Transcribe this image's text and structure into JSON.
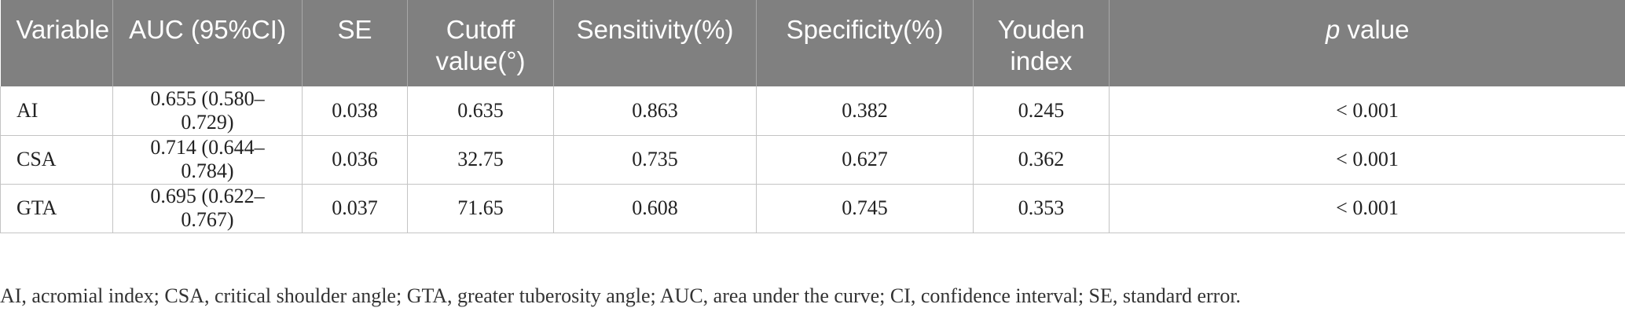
{
  "table": {
    "headers": [
      {
        "text": "Variable",
        "prefix": "",
        "suffix": ""
      },
      {
        "text": "AUC (95%CI)",
        "prefix": "",
        "suffix": ""
      },
      {
        "text": "SE",
        "prefix": "",
        "suffix": ""
      },
      {
        "line1": "Cutoff",
        "line2": "value(°)"
      },
      {
        "text": "Sensitivity(%)"
      },
      {
        "text": "Specificity(%)"
      },
      {
        "line1": "Youden",
        "line2": "index"
      },
      {
        "italic": "p",
        "rest": " value"
      }
    ],
    "rows": [
      [
        "AI",
        "0.655 (0.580–0.729)",
        "0.038",
        "0.635",
        "0.863",
        "0.382",
        "0.245",
        "< 0.001"
      ],
      [
        "CSA",
        "0.714 (0.644–0.784)",
        "0.036",
        "32.75",
        "0.735",
        "0.627",
        "0.362",
        "< 0.001"
      ],
      [
        "GTA",
        "0.695 (0.622–0.767)",
        "0.037",
        "71.65",
        "0.608",
        "0.745",
        "0.353",
        "< 0.001"
      ]
    ]
  },
  "footnote": "AI, acromial index; CSA, critical shoulder angle; GTA, greater tuberosity angle; AUC, area under the curve; CI, confidence interval; SE, standard error.",
  "colors": {
    "header_bg": "#808080",
    "header_text": "#ffffff",
    "grid": "#c4c4c4"
  }
}
